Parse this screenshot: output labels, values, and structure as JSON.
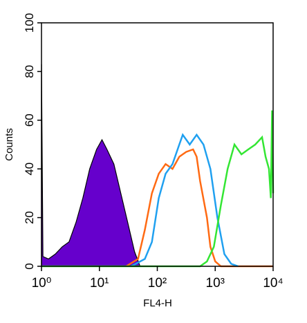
{
  "chart_data": {
    "type": "line",
    "xlabel": "FL4-H",
    "ylabel": "Counts",
    "xscale": "log",
    "xlim": [
      1,
      10000
    ],
    "ylim": [
      0,
      100
    ],
    "xticks": [
      {
        "value": 1,
        "label": "10⁰"
      },
      {
        "value": 10,
        "label": "10¹"
      },
      {
        "value": 100,
        "label": "10²"
      },
      {
        "value": 1000,
        "label": "10³"
      },
      {
        "value": 10000,
        "label": "10⁴"
      }
    ],
    "yticks": [
      0,
      20,
      40,
      60,
      80,
      100
    ],
    "series": [
      {
        "color": "#6600cc",
        "fill": true,
        "x": [
          1,
          1.06,
          1.32,
          1.73,
          2.28,
          2.99,
          3.94,
          5.18,
          6.8,
          8.94,
          11.1,
          13.5,
          17.8,
          23.4,
          30.8,
          40.5,
          50.4
        ],
        "values": [
          83,
          4,
          3,
          5,
          8,
          10,
          18,
          28,
          40,
          48,
          52,
          48,
          42,
          30,
          18,
          6,
          0
        ]
      },
      {
        "color": "#ff6a13",
        "x": [
          29,
          46.4,
          61,
          80.6,
          106,
          139,
          183,
          240,
          316,
          416,
          478,
          548,
          720,
          827,
          1000,
          1250,
          10000
        ],
        "values": [
          0,
          3,
          15,
          30,
          38,
          42,
          40,
          45,
          47,
          48,
          45,
          35,
          20,
          8,
          2,
          0,
          0
        ]
      },
      {
        "color": "#1fa0f0",
        "x": [
          35.3,
          61,
          80.6,
          106,
          139,
          183,
          240,
          275,
          363,
          478,
          628,
          827,
          1090,
          1440,
          1890,
          2490
        ],
        "values": [
          0,
          3,
          10,
          28,
          38,
          42,
          50,
          54,
          50,
          54,
          50,
          40,
          20,
          5,
          1,
          0
        ]
      },
      {
        "color": "#33e633",
        "x": [
          1,
          548,
          720,
          947,
          1250,
          1640,
          2150,
          2840,
          3730,
          4900,
          6440,
          7420,
          8470,
          9130,
          9600,
          10000
        ],
        "values": [
          0,
          0,
          2,
          8,
          25,
          40,
          50,
          46,
          48,
          50,
          53,
          45,
          40,
          28,
          64,
          30
        ]
      }
    ]
  }
}
